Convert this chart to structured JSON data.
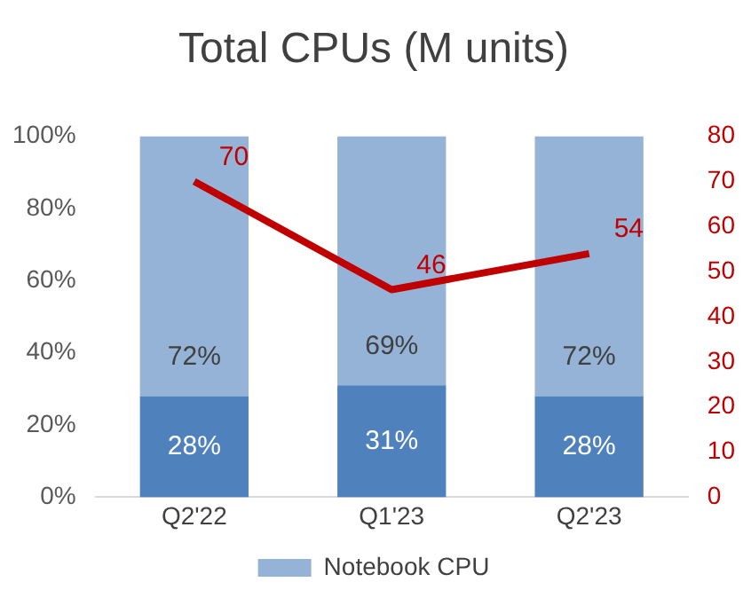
{
  "chart_data": {
    "type": "bar",
    "title": "Total CPUs (M units)",
    "categories": [
      "Q2'22",
      "Q1'23",
      "Q2'23"
    ],
    "stacked": true,
    "series": [
      {
        "color": "#4f81bd",
        "values": [
          28,
          31,
          28
        ],
        "value_labels": [
          "28%",
          "31%",
          "28%"
        ]
      },
      {
        "name": "Notebook CPU",
        "color": "#95b3d7",
        "values": [
          72,
          69,
          72
        ],
        "value_labels": [
          "72%",
          "69%",
          "72%"
        ]
      },
      {
        "type": "line",
        "axis": "y2",
        "color": "#c00000",
        "values": [
          70,
          46,
          54
        ],
        "value_labels": [
          "70",
          "46",
          "54"
        ]
      }
    ],
    "ylim": [
      0,
      100
    ],
    "yticks": [
      {
        "value": 0,
        "label": "0%"
      },
      {
        "value": 20,
        "label": "20%"
      },
      {
        "value": 40,
        "label": "40%"
      },
      {
        "value": 60,
        "label": "60%"
      },
      {
        "value": 80,
        "label": "80%"
      },
      {
        "value": 100,
        "label": "100%"
      }
    ],
    "y2lim": [
      0,
      80
    ],
    "y2ticks": [
      0,
      10,
      20,
      30,
      40,
      50,
      60,
      70,
      80
    ],
    "grid": false,
    "legend": "bottom",
    "marker": "none"
  }
}
